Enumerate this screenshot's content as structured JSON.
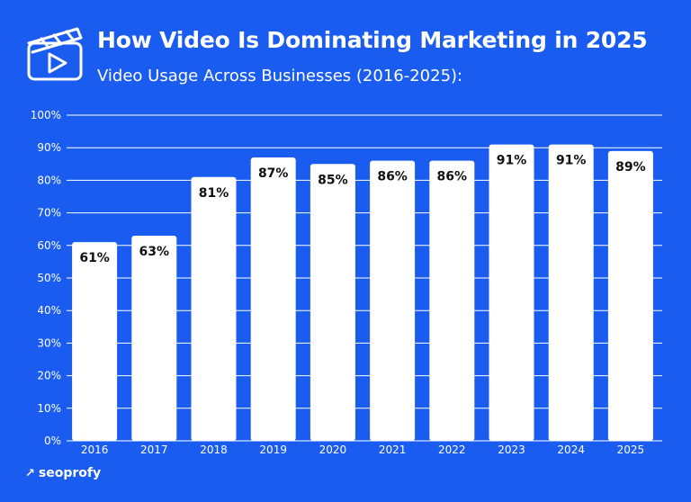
{
  "header": {
    "title": "How Video Is Dominating Marketing in 2025",
    "subtitle": "Video Usage Across Businesses (2016-2025):",
    "icon": "video-clapperboard-icon"
  },
  "brand": {
    "arrow_icon": "arrow-icon",
    "name": "seoprofy"
  },
  "colors": {
    "background": "#1a5cf0",
    "bar": "#ffffff",
    "grid": "#ffffff",
    "label": "#111111"
  },
  "chart_data": {
    "type": "bar",
    "title": "",
    "xlabel": "",
    "ylabel": "",
    "categories": [
      "2016",
      "2017",
      "2018",
      "2019",
      "2020",
      "2021",
      "2022",
      "2023",
      "2024",
      "2025"
    ],
    "values": [
      61,
      63,
      81,
      87,
      85,
      86,
      86,
      91,
      91,
      89
    ],
    "data_labels": [
      "61%",
      "63%",
      "81%",
      "87%",
      "85%",
      "86%",
      "86%",
      "91%",
      "91%",
      "89%"
    ],
    "ylim": [
      0,
      100
    ],
    "yticks": [
      0,
      10,
      20,
      30,
      40,
      50,
      60,
      70,
      80,
      90,
      100
    ],
    "ytick_labels": [
      "0%",
      "10%",
      "20%",
      "30%",
      "40%",
      "50%",
      "60%",
      "70%",
      "80%",
      "90%",
      "100%"
    ],
    "grid": true,
    "legend": "none"
  }
}
